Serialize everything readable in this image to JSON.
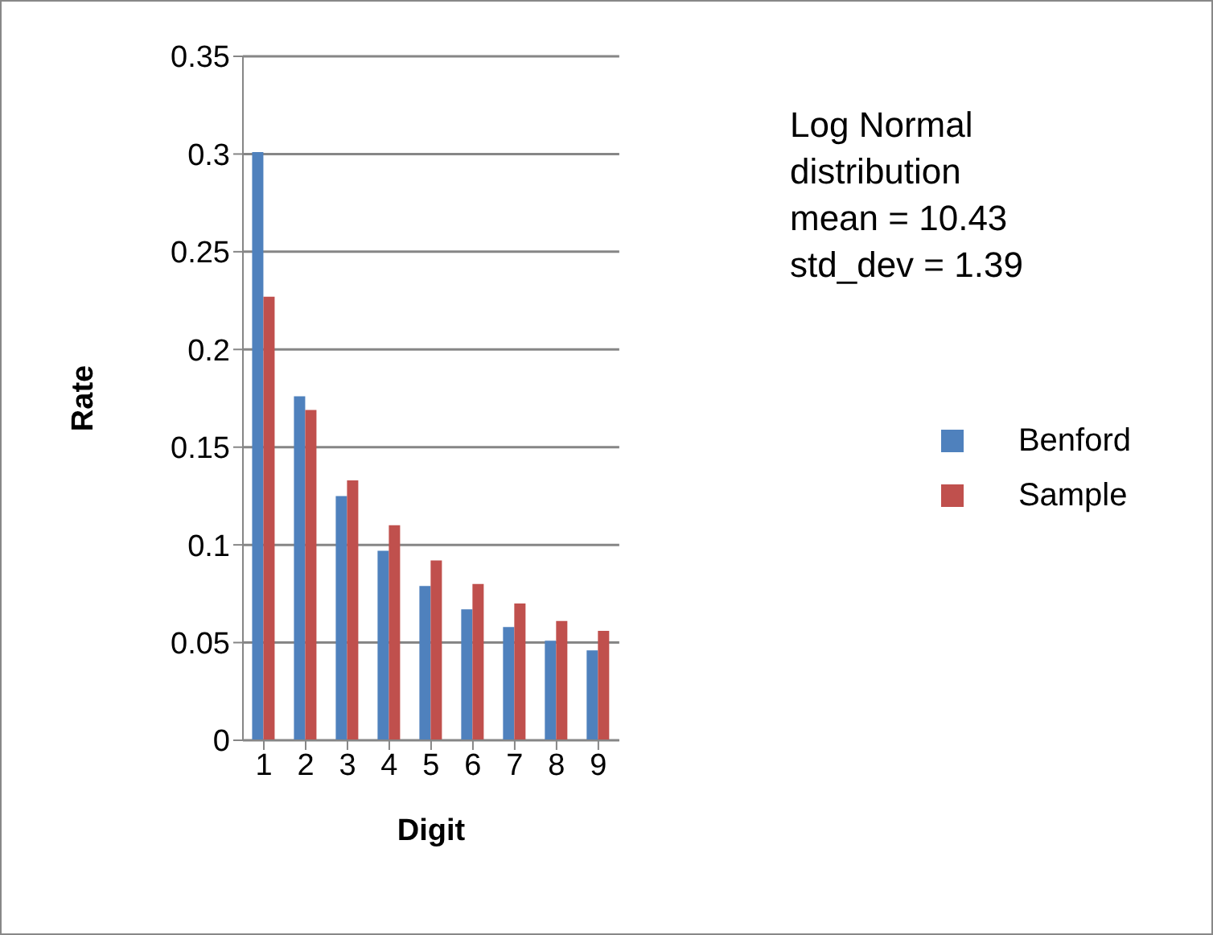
{
  "chart_data": {
    "type": "bar",
    "xlabel": "Digit",
    "ylabel": "Rate",
    "categories": [
      "1",
      "2",
      "3",
      "4",
      "5",
      "6",
      "7",
      "8",
      "9"
    ],
    "series": [
      {
        "name": "Benford",
        "color": "#4f81bd",
        "values": [
          0.301,
          0.176,
          0.125,
          0.097,
          0.079,
          0.067,
          0.058,
          0.051,
          0.046
        ]
      },
      {
        "name": "Sample",
        "color": "#c0504d",
        "values": [
          0.227,
          0.169,
          0.133,
          0.11,
          0.092,
          0.08,
          0.07,
          0.061,
          0.056
        ]
      }
    ],
    "ylim": [
      0,
      0.35
    ],
    "yticks": [
      0,
      0.05,
      0.1,
      0.15,
      0.2,
      0.25,
      0.3,
      0.35
    ],
    "grid": "y",
    "legend": "right",
    "annotations": [
      "Log Normal distribution",
      "mean = 10.43",
      "std_dev = 1.39"
    ]
  }
}
